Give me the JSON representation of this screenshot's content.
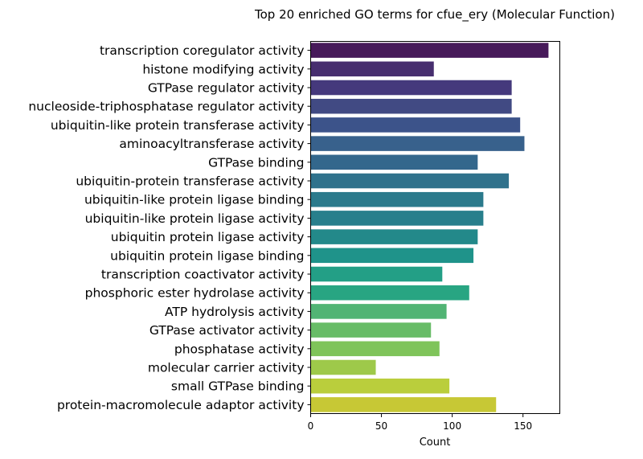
{
  "chart_data": {
    "type": "bar",
    "orientation": "horizontal",
    "title": "Top 20 enriched GO terms for cfue_ery (Molecular Function)",
    "xlabel": "Count",
    "ylabel": "",
    "xlim": [
      0,
      176
    ],
    "xticks": [
      0,
      50,
      100,
      150
    ],
    "grid": false,
    "legend": "none",
    "categories": [
      "transcription coregulator activity",
      "histone modifying activity",
      "GTPase regulator activity",
      "nucleoside-triphosphatase regulator activity",
      "ubiquitin-like protein transferase activity",
      "aminoacyltransferase activity",
      "GTPase binding",
      "ubiquitin-protein transferase activity",
      "ubiquitin-like protein ligase binding",
      "ubiquitin-like protein ligase activity",
      "ubiquitin protein ligase activity",
      "ubiquitin protein ligase binding",
      "transcription coactivator activity",
      "phosphoric ester hydrolase activity",
      "ATP hydrolysis activity",
      "GTPase activator activity",
      "phosphatase activity",
      "molecular carrier activity",
      "small GTPase binding",
      "protein-macromolecule adaptor activity"
    ],
    "values": [
      168,
      87,
      142,
      142,
      148,
      151,
      118,
      140,
      122,
      122,
      118,
      115,
      93,
      112,
      96,
      85,
      91,
      46,
      98,
      131
    ],
    "colors": [
      "#471a5a",
      "#472e6f",
      "#45397c",
      "#414a83",
      "#3c538a",
      "#38618c",
      "#33678c",
      "#30728c",
      "#2b7a8c",
      "#287f8c",
      "#23898a",
      "#1f938a",
      "#239f86",
      "#28a582",
      "#51b474",
      "#68bc67",
      "#7fc45a",
      "#9ec94a",
      "#bace3c",
      "#c7c835"
    ]
  }
}
